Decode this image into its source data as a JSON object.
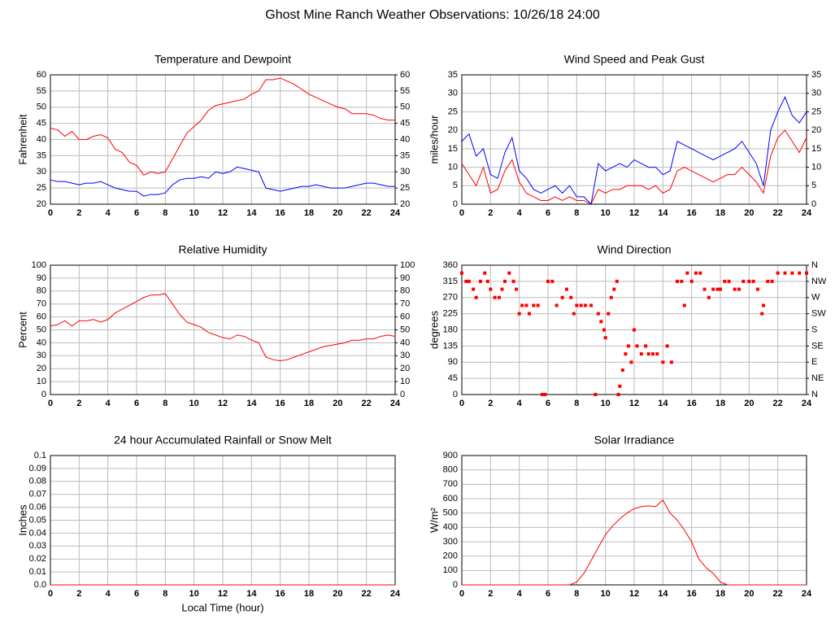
{
  "title": "Ghost Mine Ranch Weather Observations: 10/26/18 24:00",
  "chart_data": [
    {
      "type": "line",
      "title": "Temperature and Dewpoint",
      "ylabel": "Fahrenheit",
      "grid": true,
      "xlim": [
        0,
        24
      ],
      "xticks": [
        0,
        2,
        4,
        6,
        8,
        10,
        12,
        14,
        16,
        18,
        20,
        22,
        24
      ],
      "ylim": [
        20,
        60
      ],
      "yticks": [
        20,
        25,
        30,
        35,
        40,
        45,
        50,
        55,
        60
      ],
      "y2lim": [
        20,
        60
      ],
      "y2ticks": [
        20,
        25,
        30,
        35,
        40,
        45,
        50,
        55,
        60
      ],
      "x": [
        0,
        0.5,
        1,
        1.5,
        2,
        2.5,
        3,
        3.5,
        4,
        4.5,
        5,
        5.5,
        6,
        6.5,
        7,
        7.5,
        8,
        8.5,
        9,
        9.5,
        10,
        10.5,
        11,
        11.5,
        12,
        12.5,
        13,
        13.5,
        14,
        14.5,
        15,
        15.5,
        16,
        16.5,
        17,
        17.5,
        18,
        18.5,
        19,
        19.5,
        20,
        20.5,
        21,
        21.5,
        22,
        22.5,
        23,
        23.5,
        24
      ],
      "series": [
        {
          "color": "#ff0000",
          "values": [
            43.5,
            43,
            41,
            42.5,
            40,
            40,
            41,
            41.5,
            40.5,
            37,
            36,
            33,
            32,
            29,
            30,
            29.5,
            30,
            34,
            38,
            42,
            44,
            46,
            49,
            50.5,
            51,
            51.5,
            52,
            52.5,
            54,
            55,
            58.5,
            58.5,
            59,
            58,
            57,
            55.5,
            54,
            53,
            52,
            51,
            50,
            49.5,
            48,
            48,
            48,
            47.5,
            46.5,
            46,
            46
          ]
        },
        {
          "color": "#0000ff",
          "values": [
            27.5,
            27,
            27,
            26.5,
            26,
            26.5,
            26.5,
            27,
            26,
            25,
            24.5,
            24,
            24,
            22.5,
            23,
            23,
            23.5,
            26,
            27.5,
            28,
            28,
            28.5,
            28,
            30,
            29.5,
            30,
            31.5,
            31,
            30.5,
            30,
            25,
            24.5,
            24,
            24.5,
            25,
            25.5,
            25.5,
            26,
            25.5,
            25,
            25,
            25,
            25.5,
            26,
            26.5,
            26.5,
            26,
            25.5,
            25.5
          ]
        }
      ]
    },
    {
      "type": "line",
      "title": "Wind Speed and Peak Gust",
      "ylabel": "miles/hour",
      "grid": true,
      "xlim": [
        0,
        24
      ],
      "xticks": [
        0,
        2,
        4,
        6,
        8,
        10,
        12,
        14,
        16,
        18,
        20,
        22,
        24
      ],
      "ylim": [
        0,
        35
      ],
      "yticks": [
        0,
        5,
        10,
        15,
        20,
        25,
        30,
        35
      ],
      "y2lim": [
        0,
        35
      ],
      "y2ticks": [
        0,
        5,
        10,
        15,
        20,
        25,
        30,
        35
      ],
      "x": [
        0,
        0.5,
        1,
        1.5,
        2,
        2.5,
        3,
        3.5,
        4,
        4.5,
        5,
        5.5,
        6,
        6.5,
        7,
        7.5,
        8,
        8.5,
        9,
        9.5,
        10,
        10.5,
        11,
        11.5,
        12,
        12.5,
        13,
        13.5,
        14,
        14.5,
        15,
        15.5,
        16,
        16.5,
        17,
        17.5,
        18,
        18.5,
        19,
        19.5,
        20,
        20.5,
        21,
        21.5,
        22,
        22.5,
        23,
        23.5,
        24
      ],
      "series": [
        {
          "color": "#ff0000",
          "values": [
            11,
            8,
            5,
            10,
            3,
            4,
            9,
            12,
            6,
            3,
            2,
            1,
            1,
            2,
            1,
            2,
            1,
            1,
            0,
            4,
            3,
            4,
            4,
            5,
            5,
            5,
            4,
            5,
            3,
            4,
            9,
            10,
            9,
            8,
            7,
            6,
            7,
            8,
            8,
            10,
            8,
            6,
            3,
            13,
            18,
            20,
            17,
            14,
            18
          ]
        },
        {
          "color": "#0000ff",
          "values": [
            17,
            19,
            13,
            15,
            8,
            7,
            14,
            18,
            9,
            7,
            4,
            3,
            4,
            5,
            3,
            5,
            2,
            2,
            0,
            11,
            9,
            10,
            11,
            10,
            12,
            11,
            10,
            10,
            8,
            9,
            17,
            16,
            15,
            14,
            13,
            12,
            13,
            14,
            15,
            17,
            14,
            11,
            5,
            20,
            25,
            29,
            24,
            22,
            25
          ]
        }
      ]
    },
    {
      "type": "line",
      "title": "Relative Humidity",
      "ylabel": "Percent",
      "grid": true,
      "xlim": [
        0,
        24
      ],
      "xticks": [
        0,
        2,
        4,
        6,
        8,
        10,
        12,
        14,
        16,
        18,
        20,
        22,
        24
      ],
      "ylim": [
        0,
        100
      ],
      "yticks": [
        0,
        10,
        20,
        30,
        40,
        50,
        60,
        70,
        80,
        90,
        100
      ],
      "y2lim": [
        0,
        100
      ],
      "y2ticks": [
        0,
        10,
        20,
        30,
        40,
        50,
        60,
        70,
        80,
        90,
        100
      ],
      "x": [
        0,
        0.5,
        1,
        1.5,
        2,
        2.5,
        3,
        3.5,
        4,
        4.5,
        5,
        5.5,
        6,
        6.5,
        7,
        7.5,
        8,
        8.5,
        9,
        9.5,
        10,
        10.5,
        11,
        11.5,
        12,
        12.5,
        13,
        13.5,
        14,
        14.5,
        15,
        15.5,
        16,
        16.5,
        17,
        17.5,
        18,
        18.5,
        19,
        19.5,
        20,
        20.5,
        21,
        21.5,
        22,
        22.5,
        23,
        23.5,
        24
      ],
      "series": [
        {
          "color": "#ff0000",
          "values": [
            53,
            54,
            57,
            53,
            57,
            57,
            58,
            56,
            58,
            63,
            66,
            69,
            72,
            75,
            77,
            77,
            78,
            70,
            62,
            56,
            54,
            52,
            48,
            46,
            44,
            43,
            46,
            45,
            42,
            40,
            29,
            27,
            26,
            27,
            29,
            31,
            33,
            35,
            37,
            38,
            39,
            40,
            42,
            42,
            43,
            43,
            45,
            46,
            45
          ]
        }
      ]
    },
    {
      "type": "scatter",
      "title": "Wind Direction",
      "ylabel": "degrees",
      "grid": true,
      "xlim": [
        0,
        24
      ],
      "xticks": [
        0,
        2,
        4,
        6,
        8,
        10,
        12,
        14,
        16,
        18,
        20,
        22,
        24
      ],
      "ylim": [
        0,
        360
      ],
      "yticks": [
        0,
        45,
        90,
        135,
        180,
        225,
        270,
        315,
        360
      ],
      "y2lim": [
        0,
        360
      ],
      "y2ticks": [
        {
          "value": 0,
          "label": "N"
        },
        {
          "value": 45,
          "label": "NE"
        },
        {
          "value": 90,
          "label": "E"
        },
        {
          "value": 135,
          "label": "SE"
        },
        {
          "value": 180,
          "label": "S"
        },
        {
          "value": 225,
          "label": "SW"
        },
        {
          "value": 270,
          "label": "W"
        },
        {
          "value": 315,
          "label": "NW"
        },
        {
          "value": 360,
          "label": "N"
        }
      ],
      "x": [
        0,
        0.3,
        0.5,
        0.8,
        1,
        1.3,
        1.6,
        1.8,
        2,
        2.3,
        2.6,
        2.8,
        3,
        3.3,
        3.6,
        3.8,
        4,
        4.2,
        4.5,
        4.7,
        5,
        5.3,
        5.6,
        5.8,
        6,
        6.3,
        6.6,
        7,
        7.3,
        7.6,
        7.8,
        8,
        8.3,
        8.6,
        9,
        9.3,
        9.5,
        9.7,
        9.9,
        10,
        10.2,
        10.4,
        10.6,
        10.8,
        10.9,
        11,
        11.2,
        11.4,
        11.6,
        11.8,
        12,
        12.2,
        12.5,
        12.8,
        13,
        13.3,
        13.6,
        14,
        14.3,
        14.6,
        15,
        15.3,
        15.5,
        15.7,
        16,
        16.3,
        16.6,
        16.9,
        17.2,
        17.5,
        17.8,
        18,
        18.3,
        18.6,
        19,
        19.3,
        19.6,
        20,
        20.3,
        20.6,
        20.9,
        21,
        21.3,
        21.6,
        22,
        22.5,
        23,
        23.5,
        24
      ],
      "series": [
        {
          "color": "#ff0000",
          "values": [
            338,
            315,
            315,
            293,
            270,
            315,
            338,
            315,
            293,
            270,
            270,
            293,
            315,
            338,
            315,
            293,
            225,
            248,
            248,
            225,
            248,
            248,
            0,
            0,
            315,
            315,
            248,
            270,
            293,
            270,
            225,
            248,
            248,
            248,
            248,
            0,
            225,
            203,
            180,
            158,
            225,
            270,
            293,
            315,
            0,
            23,
            68,
            113,
            135,
            90,
            180,
            135,
            113,
            135,
            113,
            113,
            113,
            90,
            135,
            90,
            315,
            315,
            248,
            338,
            315,
            338,
            338,
            293,
            270,
            293,
            293,
            293,
            315,
            315,
            293,
            293,
            315,
            315,
            315,
            293,
            225,
            248,
            315,
            315,
            338,
            338,
            338,
            338,
            338
          ]
        }
      ]
    },
    {
      "type": "line",
      "title": "24 hour Accumulated Rainfall or Snow Melt",
      "ylabel": "Inches",
      "xlabel": "Local Time (hour)",
      "grid": true,
      "xlim": [
        0,
        24
      ],
      "xticks": [
        0,
        2,
        4,
        6,
        8,
        10,
        12,
        14,
        16,
        18,
        20,
        22,
        24
      ],
      "ylim": [
        0,
        0.1
      ],
      "yticks": [
        {
          "value": 0,
          "label": "0.0"
        },
        0.01,
        0.02,
        0.03,
        0.04,
        0.05,
        0.06,
        0.07,
        0.08,
        0.09,
        0.1
      ],
      "x": [
        0,
        24
      ],
      "series": [
        {
          "color": "#ff0000",
          "values": [
            0,
            0
          ]
        }
      ]
    },
    {
      "type": "line",
      "title": "Solar Irradiance",
      "ylabel": "W/m²",
      "grid": true,
      "xlim": [
        0,
        24
      ],
      "xticks": [
        0,
        2,
        4,
        6,
        8,
        10,
        12,
        14,
        16,
        18,
        20,
        22,
        24
      ],
      "ylim": [
        0,
        900
      ],
      "yticks": [
        0,
        100,
        200,
        300,
        400,
        500,
        600,
        700,
        800,
        900
      ],
      "x": [
        0,
        0.5,
        1,
        1.5,
        2,
        2.5,
        3,
        3.5,
        4,
        4.5,
        5,
        5.5,
        6,
        6.5,
        7,
        7.5,
        8,
        8.5,
        9,
        9.5,
        10,
        10.5,
        11,
        11.5,
        12,
        12.5,
        13,
        13.5,
        14,
        14.5,
        15,
        15.5,
        16,
        16.5,
        17,
        17.5,
        18,
        18.5,
        19,
        19.5,
        20,
        20.5,
        21,
        21.5,
        22,
        22.5,
        23,
        23.5,
        24
      ],
      "series": [
        {
          "color": "#ff0000",
          "values": [
            0,
            0,
            0,
            0,
            0,
            0,
            0,
            0,
            0,
            0,
            0,
            0,
            0,
            0,
            0,
            0,
            20,
            80,
            170,
            260,
            350,
            410,
            460,
            500,
            530,
            545,
            550,
            545,
            590,
            500,
            450,
            380,
            300,
            180,
            120,
            80,
            20,
            0,
            0,
            0,
            0,
            0,
            0,
            0,
            0,
            0,
            0,
            0,
            0
          ]
        }
      ]
    }
  ]
}
